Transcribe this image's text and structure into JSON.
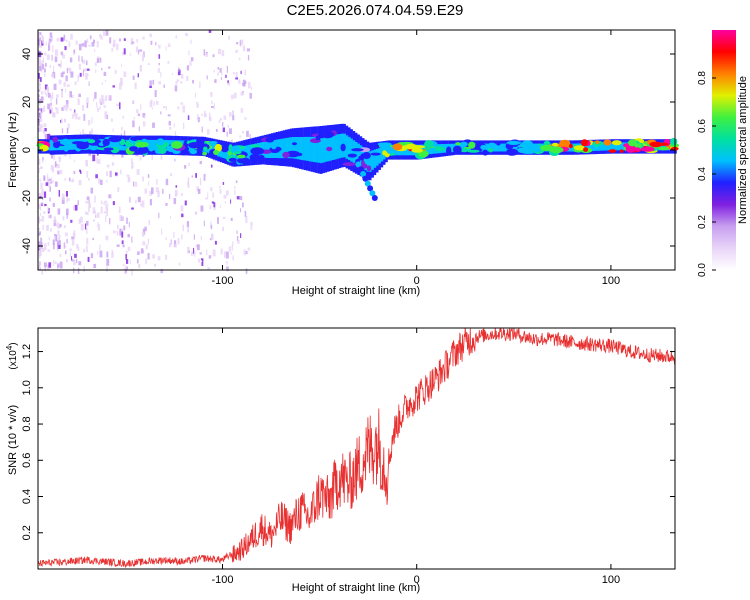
{
  "title": "C2E5.2026.074.04.59.E29",
  "colors": {
    "snr_line": "#e83030",
    "background": "#ffffff",
    "axis": "#000000",
    "scatter_noise": "#a070e8"
  },
  "colorbar": {
    "label": "Normalized spectral amplitude",
    "ticks": [
      "0.0",
      "0.2",
      "0.4",
      "0.6",
      "0.8"
    ],
    "tick_values": [
      0.0,
      0.2,
      0.4,
      0.6,
      0.8
    ],
    "range": [
      0,
      1
    ],
    "colormap": [
      "#ffffff",
      "#e8d4f8",
      "#c8a0f0",
      "#8020e0",
      "#2020ff",
      "#00c0ff",
      "#00e0a0",
      "#40f040",
      "#e0f000",
      "#ff8000",
      "#ff0000",
      "#ff00a0"
    ]
  },
  "chart_data": [
    {
      "type": "heatmap",
      "title": "",
      "xlabel": "Height of straight line (km)",
      "ylabel": "Frequency (Hz)",
      "xlim": [
        -195,
        133
      ],
      "ylim": [
        -50,
        50
      ],
      "x_ticks": [
        -100,
        0,
        100
      ],
      "x_tick_labels": [
        "-100",
        "0",
        "100"
      ],
      "y_ticks": [
        -40,
        -20,
        0,
        20,
        40
      ],
      "y_tick_labels": [
        "-40",
        "-20",
        "0",
        "20",
        "40"
      ],
      "ridge": [
        {
          "x": -190,
          "freq": 2,
          "width": 4,
          "amp": 0.45
        },
        {
          "x": -170,
          "freq": 2.5,
          "width": 4,
          "amp": 0.5
        },
        {
          "x": -150,
          "freq": 2,
          "width": 4,
          "amp": 0.55
        },
        {
          "x": -130,
          "freq": 2,
          "width": 4,
          "amp": 0.5
        },
        {
          "x": -110,
          "freq": 1.5,
          "width": 4,
          "amp": 0.55
        },
        {
          "x": -95,
          "freq": -2,
          "width": 5,
          "amp": 0.6
        },
        {
          "x": -80,
          "freq": 0,
          "width": 6,
          "amp": 0.45
        },
        {
          "x": -65,
          "freq": 1,
          "width": 8,
          "amp": 0.4
        },
        {
          "x": -50,
          "freq": 0,
          "width": 10,
          "amp": 0.35
        },
        {
          "x": -38,
          "freq": 2,
          "width": 9,
          "amp": 0.4
        },
        {
          "x": -25,
          "freq": -5,
          "width": 8,
          "amp": 0.35
        },
        {
          "x": -15,
          "freq": 0,
          "width": 4,
          "amp": 0.7
        },
        {
          "x": 0,
          "freq": 0,
          "width": 4,
          "amp": 0.8
        },
        {
          "x": 20,
          "freq": 1,
          "width": 3,
          "amp": 0.55
        },
        {
          "x": 40,
          "freq": 1,
          "width": 3,
          "amp": 0.45
        },
        {
          "x": 60,
          "freq": 1,
          "width": 3,
          "amp": 0.55
        },
        {
          "x": 80,
          "freq": 1,
          "width": 3,
          "amp": 0.95
        },
        {
          "x": 100,
          "freq": 1.5,
          "width": 3,
          "amp": 0.85
        },
        {
          "x": 125,
          "freq": 1.5,
          "width": 3,
          "amp": 0.9
        }
      ]
    },
    {
      "type": "line",
      "title": "",
      "xlabel": "Height of straight line (km)",
      "ylabel": "SNR (10 * v/v)",
      "y_scale_label": "(x10",
      "y_scale_exp": "4",
      "y_scale_close": ")",
      "xlim": [
        -195,
        133
      ],
      "ylim": [
        0.0,
        1.33
      ],
      "x_ticks": [
        -100,
        0,
        100
      ],
      "x_tick_labels": [
        "-100",
        "0",
        "100"
      ],
      "y_ticks": [
        0.2,
        0.4,
        0.6,
        0.8,
        1.0,
        1.2
      ],
      "y_tick_labels": [
        "0.2",
        "0.4",
        "0.6",
        "0.8",
        "1.0",
        "1.2"
      ],
      "series": [
        {
          "name": "SNR",
          "x": [
            -195,
            -180,
            -170,
            -160,
            -150,
            -140,
            -130,
            -120,
            -110,
            -100,
            -90,
            -85,
            -80,
            -75,
            -70,
            -65,
            -60,
            -55,
            -50,
            -45,
            -40,
            -35,
            -30,
            -25,
            -20,
            -15,
            -12,
            -10,
            -8,
            -5,
            0,
            5,
            10,
            15,
            20,
            25,
            30,
            40,
            50,
            60,
            70,
            80,
            90,
            100,
            110,
            120,
            133
          ],
          "values": [
            0.03,
            0.04,
            0.05,
            0.04,
            0.03,
            0.04,
            0.05,
            0.04,
            0.06,
            0.05,
            0.12,
            0.18,
            0.25,
            0.2,
            0.3,
            0.25,
            0.35,
            0.3,
            0.45,
            0.4,
            0.55,
            0.5,
            0.6,
            0.7,
            0.75,
            0.55,
            0.75,
            0.8,
            0.85,
            0.9,
            0.95,
            1.0,
            1.05,
            1.12,
            1.2,
            1.25,
            1.28,
            1.3,
            1.3,
            1.27,
            1.27,
            1.25,
            1.24,
            1.23,
            1.2,
            1.18,
            1.17
          ],
          "color": "#e83030"
        }
      ]
    }
  ]
}
